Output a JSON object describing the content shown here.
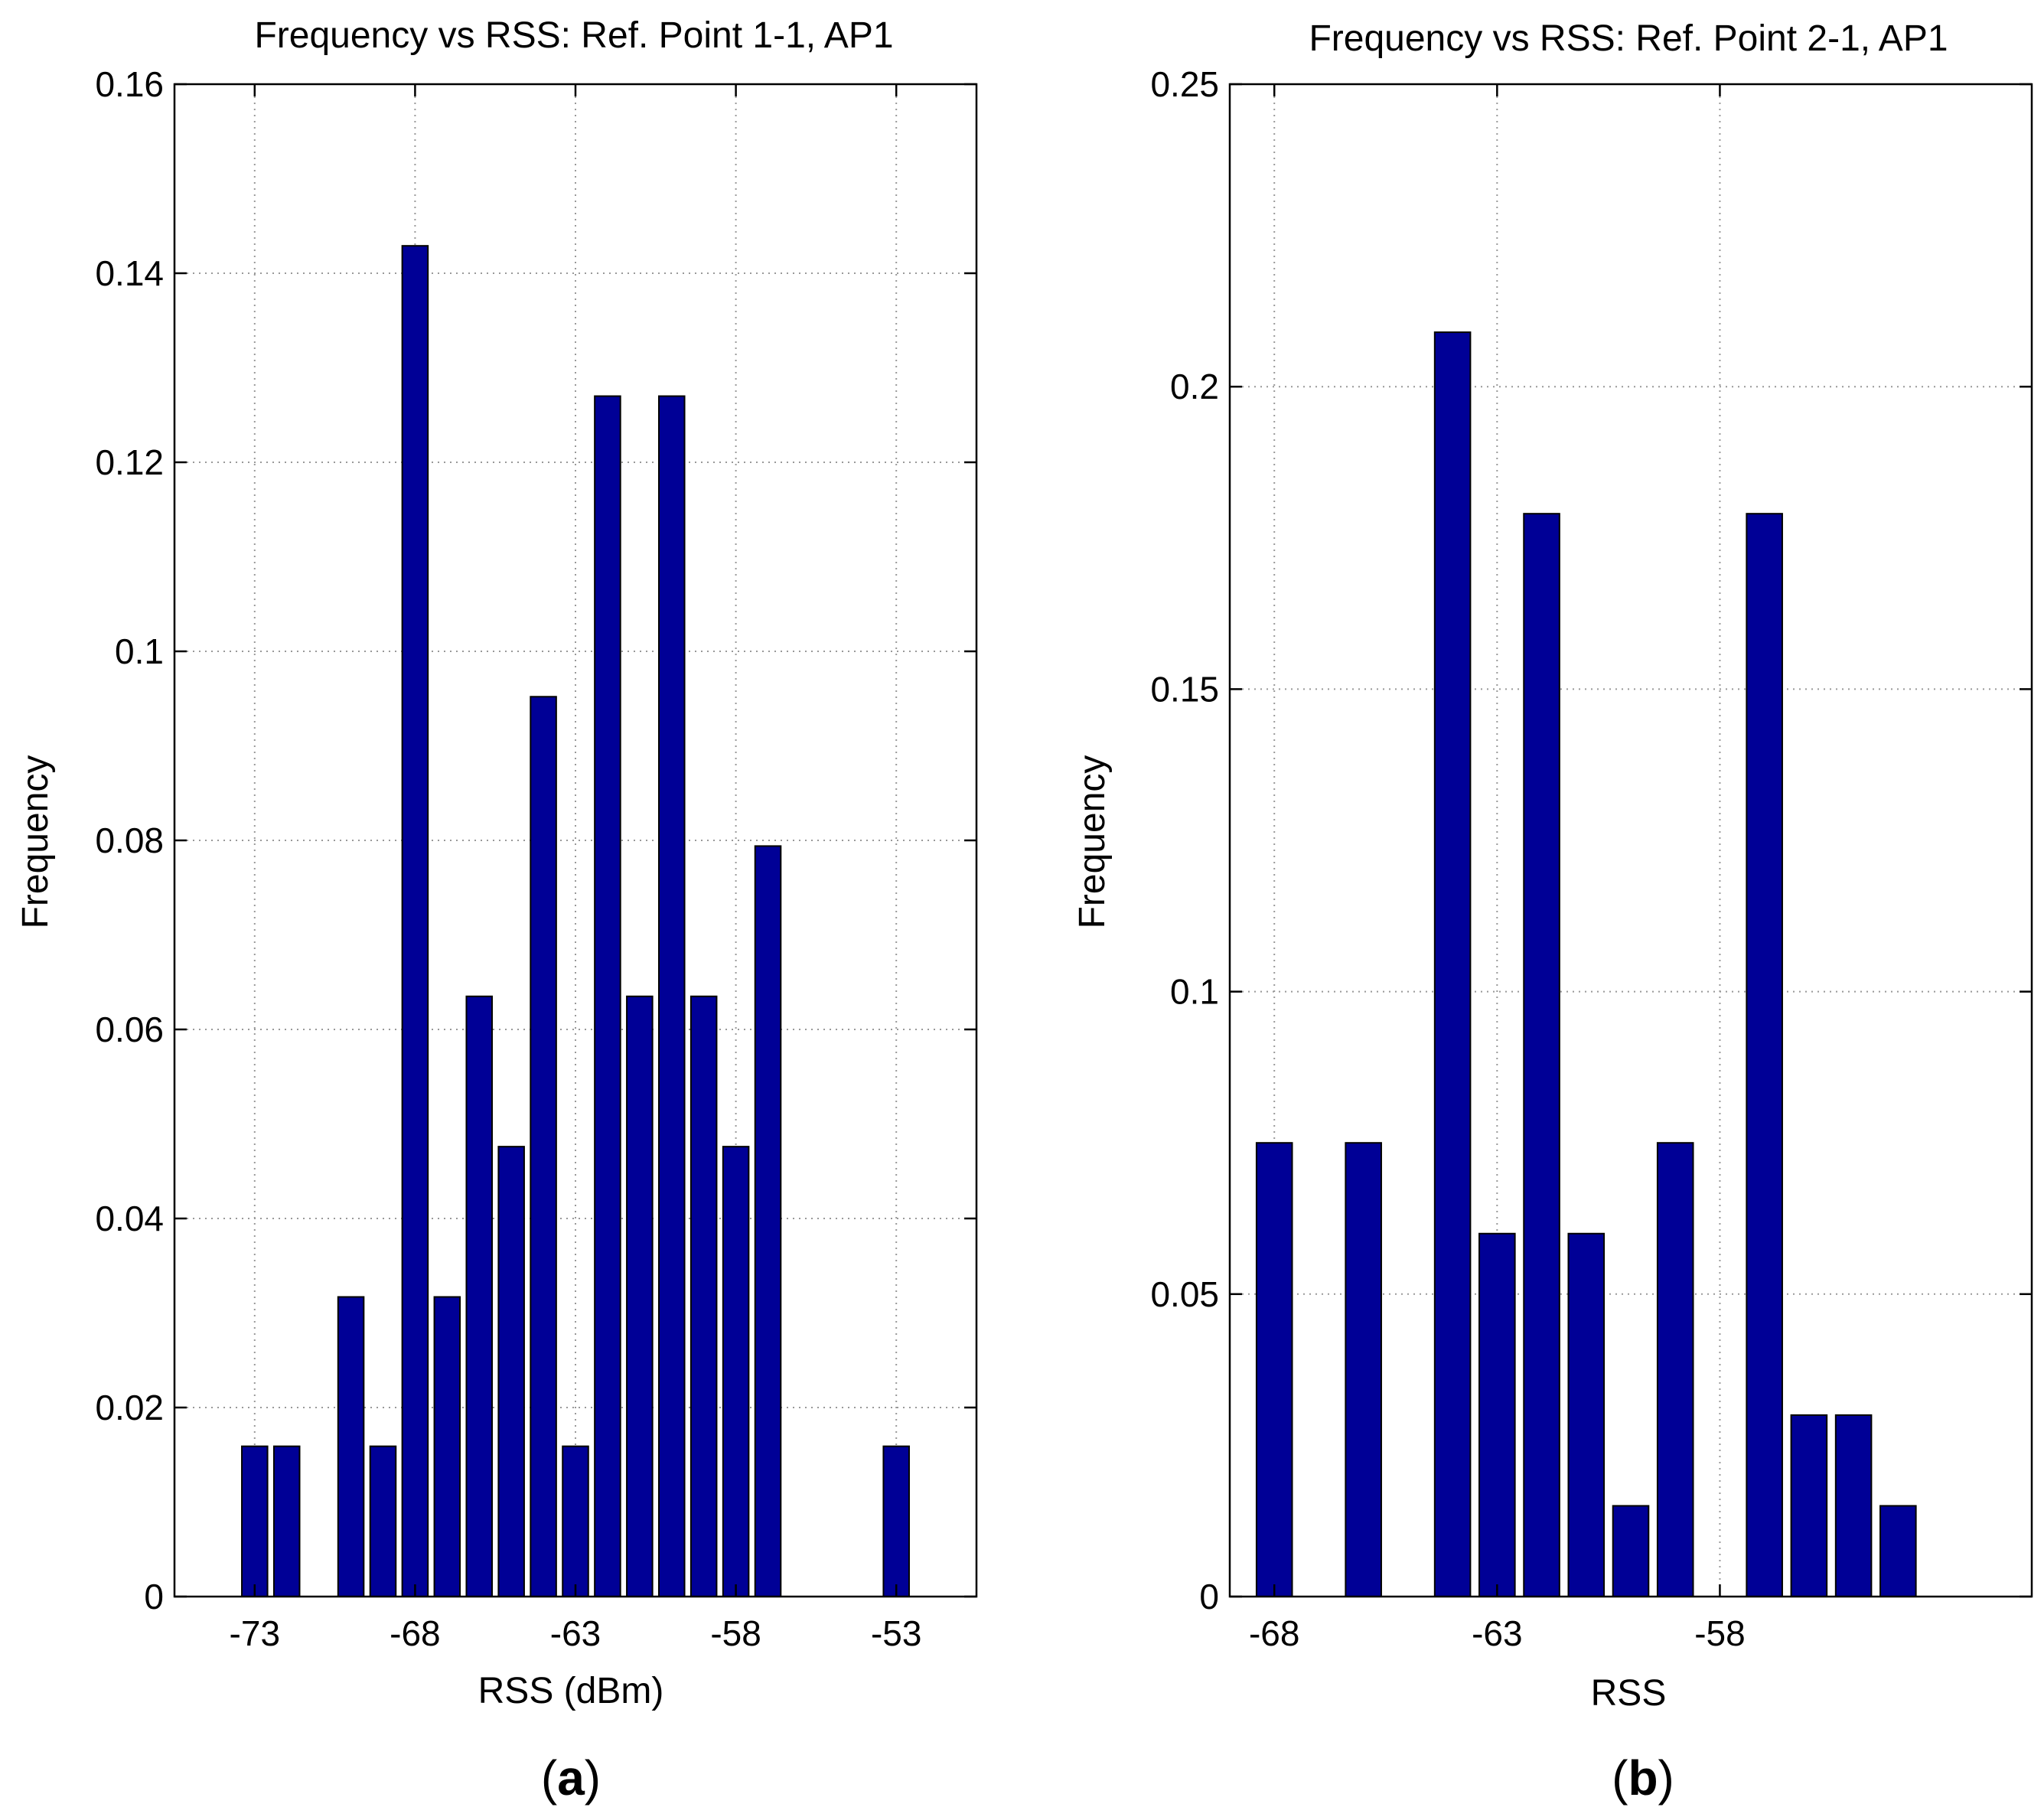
{
  "colors": {
    "bar": "#000096",
    "axis": "#000000",
    "grid": "#999999",
    "background": "#ffffff"
  },
  "chart_data": [
    {
      "type": "bar",
      "title": "Frequency vs RSS: Ref. Point 1-1, AP1",
      "xlabel": "RSS (dBm)",
      "ylabel": "Frequency",
      "xlim": [
        -75.5,
        -50.5
      ],
      "ylim": [
        0,
        0.16
      ],
      "xticks": [
        -73,
        -68,
        -63,
        -58,
        -53
      ],
      "xtick_labels": [
        "-73",
        "-68",
        "-63",
        "-58",
        "-53"
      ],
      "yticks": [
        0,
        0.02,
        0.04,
        0.06,
        0.08,
        0.1,
        0.12,
        0.14,
        0.16
      ],
      "ytick_labels": [
        "0",
        "0.02",
        "0.04",
        "0.06",
        "0.08",
        "0.1",
        "0.12",
        "0.14",
        "0.16"
      ],
      "grid": true,
      "bar_width": 0.8,
      "x": [
        -73,
        -72,
        -70,
        -69,
        -68,
        -67,
        -66,
        -65,
        -64,
        -63,
        -62,
        -61,
        -60,
        -59,
        -58,
        -57,
        -53
      ],
      "values": [
        0.0159,
        0.0159,
        0.0317,
        0.0159,
        0.1429,
        0.0317,
        0.0635,
        0.0476,
        0.0952,
        0.0159,
        0.127,
        0.0635,
        0.127,
        0.0635,
        0.0476,
        0.0794,
        0.0159
      ],
      "caption_open": "(",
      "caption_letter": "a",
      "caption_close": ")"
    },
    {
      "type": "bar",
      "title": "Frequency vs RSS: Ref. Point 2-1, AP1",
      "xlabel": "RSS",
      "ylabel": "Frequency",
      "xlim": [
        -69,
        -51
      ],
      "ylim": [
        0,
        0.25
      ],
      "xticks": [
        -68,
        -63,
        -58
      ],
      "xtick_labels": [
        "-68",
        "-63",
        "-58"
      ],
      "yticks": [
        0,
        0.05,
        0.1,
        0.15,
        0.2,
        0.25
      ],
      "ytick_labels": [
        "0",
        "0.05",
        "0.1",
        "0.15",
        "0.2",
        "0.25"
      ],
      "grid": true,
      "bar_width": 0.8,
      "x": [
        -68,
        -66,
        -64,
        -63,
        -62,
        -61,
        -60,
        -59,
        -57,
        -56,
        -55,
        -54
      ],
      "values": [
        0.075,
        0.075,
        0.209,
        0.06,
        0.179,
        0.06,
        0.015,
        0.075,
        0.179,
        0.03,
        0.03,
        0.015
      ],
      "caption_open": "(",
      "caption_letter": "b",
      "caption_close": ")"
    }
  ]
}
